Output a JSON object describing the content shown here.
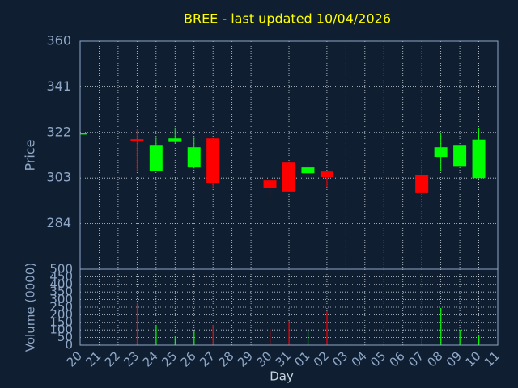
{
  "chart_data": {
    "type": "candlestick",
    "title": "BREE - last updated 10/04/2026",
    "ylabel": "Price",
    "volume_ylabel": "Volume (0000)",
    "xlabel": "Day",
    "categories": [
      "20",
      "21",
      "22",
      "23",
      "24",
      "25",
      "26",
      "27",
      "28",
      "29",
      "30",
      "31",
      "01",
      "02",
      "03",
      "04",
      "05",
      "06",
      "07",
      "08",
      "09",
      "10",
      "11"
    ],
    "open": [
      321.5,
      null,
      null,
      319.2,
      306,
      318,
      307.4,
      319.5,
      null,
      null,
      302,
      309.4,
      305,
      305.7,
      null,
      null,
      null,
      null,
      304.4,
      311.8,
      308,
      303,
      null
    ],
    "high": [
      322,
      null,
      null,
      323.5,
      319.8,
      324,
      319.8,
      319.5,
      null,
      null,
      302.5,
      309.4,
      308.7,
      305.7,
      null,
      null,
      null,
      null,
      307,
      322,
      316.8,
      324,
      null
    ],
    "low": [
      321.5,
      null,
      null,
      306,
      306,
      317.5,
      307,
      299,
      null,
      null,
      295,
      297.4,
      305,
      299.3,
      null,
      null,
      null,
      null,
      296.7,
      306,
      308,
      303,
      null
    ],
    "close": [
      321.8,
      null,
      null,
      318.8,
      316.8,
      319.5,
      315.8,
      301,
      null,
      null,
      299,
      297.4,
      307.4,
      303.4,
      null,
      null,
      null,
      null,
      296.7,
      315.8,
      316.8,
      319,
      null
    ],
    "volume": [
      null,
      null,
      null,
      277,
      133,
      58,
      90,
      133,
      null,
      null,
      106,
      160,
      96,
      223,
      null,
      null,
      null,
      null,
      64,
      245,
      101,
      69,
      null
    ],
    "up_color": "#00ff00",
    "down_color": "#ff0000",
    "ylim": [
      265,
      360
    ],
    "yticks": [
      284,
      303,
      322,
      341,
      360
    ],
    "volume_ylim": [
      0,
      500
    ],
    "volume_yticks": [
      0,
      50,
      100,
      150,
      200,
      250,
      300,
      350,
      400,
      450,
      500
    ],
    "grid": true
  }
}
